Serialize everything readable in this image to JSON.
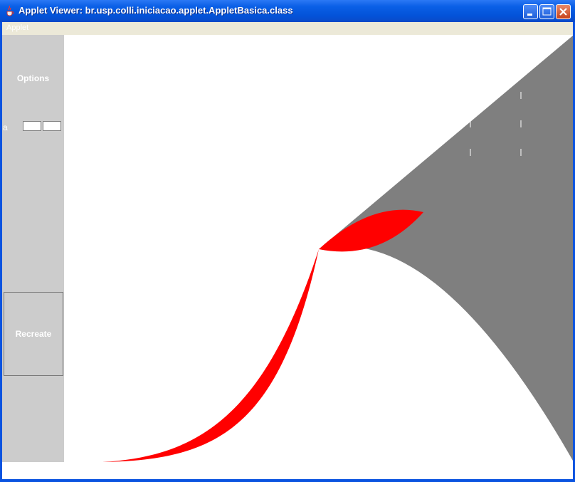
{
  "window": {
    "title": "Applet Viewer: br.usp.colli.iniciacao.applet.AppletBasica.class",
    "icon": "java-cup-icon"
  },
  "menu": {
    "items": [
      {
        "label": "Applet"
      }
    ]
  },
  "panel": {
    "options_label": "Options",
    "a_label": "a",
    "a_field_1": "",
    "a_field_2": "",
    "recreate_label": "Recreate"
  },
  "colors": {
    "fill_gray": "#808080",
    "fill_red": "#ff0000",
    "panel_bg": "#cccccc"
  }
}
